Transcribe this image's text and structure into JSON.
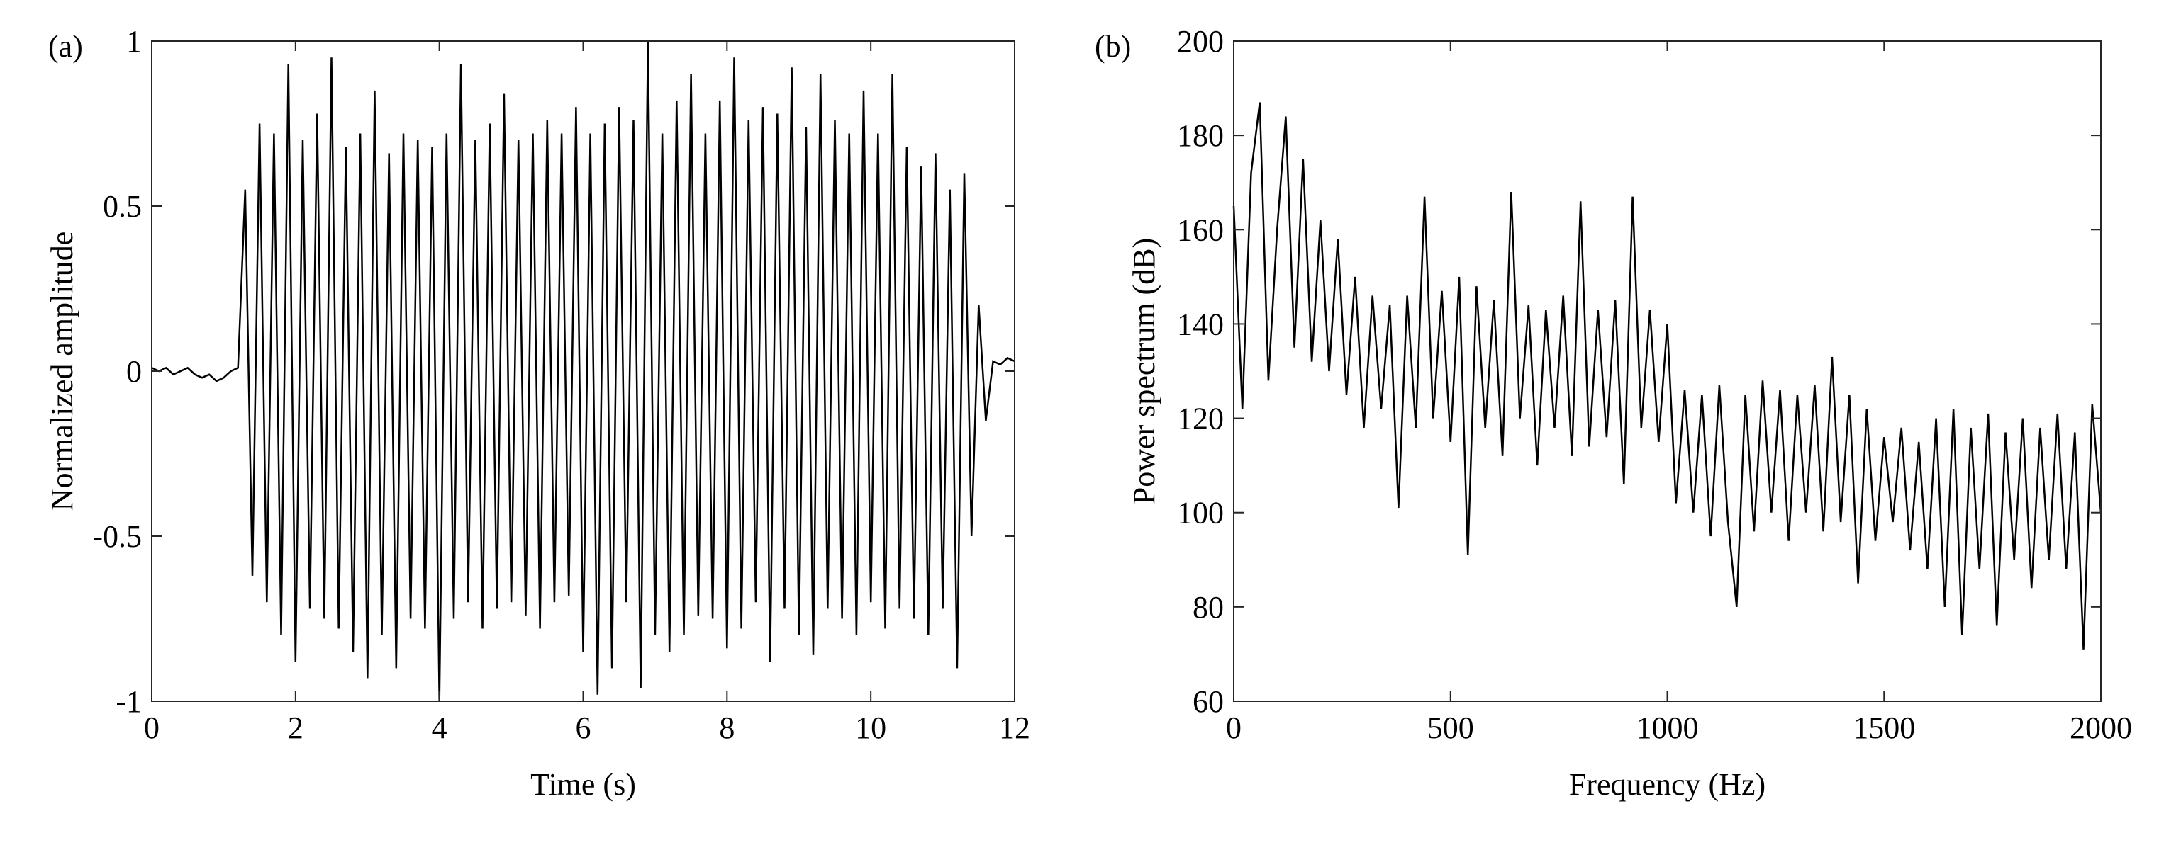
{
  "chart_data": [
    {
      "type": "line",
      "panel_label": "(a)",
      "xlabel": "Time (s)",
      "ylabel": "Normalized amplitude",
      "color": "#000000",
      "xlim": [
        0,
        12
      ],
      "xticks": [
        0,
        2,
        4,
        6,
        8,
        10,
        12
      ],
      "ylim": [
        -1,
        1
      ],
      "yticks": [
        -1,
        -0.5,
        0,
        0.5,
        1
      ],
      "x": [
        0,
        0.1,
        0.2,
        0.3,
        0.4,
        0.5,
        0.6,
        0.7,
        0.8,
        0.9,
        1,
        1.1,
        1.2,
        1.3,
        1.4,
        1.5,
        1.6,
        1.7,
        1.8,
        1.9,
        2,
        2.1,
        2.2,
        2.3,
        2.4,
        2.5,
        2.6,
        2.7,
        2.8,
        2.9,
        3,
        3.1,
        3.2,
        3.3,
        3.4,
        3.5,
        3.6,
        3.7,
        3.8,
        3.9,
        4,
        4.1,
        4.2,
        4.3,
        4.4,
        4.5,
        4.6,
        4.7,
        4.8,
        4.9,
        5,
        5.1,
        5.2,
        5.3,
        5.4,
        5.5,
        5.6,
        5.7,
        5.8,
        5.9,
        6,
        6.1,
        6.2,
        6.3,
        6.4,
        6.5,
        6.6,
        6.7,
        6.8,
        6.9,
        7,
        7.1,
        7.2,
        7.3,
        7.4,
        7.5,
        7.6,
        7.7,
        7.8,
        7.9,
        8,
        8.1,
        8.2,
        8.3,
        8.4,
        8.5,
        8.6,
        8.7,
        8.8,
        8.9,
        9,
        9.1,
        9.2,
        9.3,
        9.4,
        9.5,
        9.6,
        9.7,
        9.8,
        9.9,
        10,
        10.1,
        10.2,
        10.3,
        10.4,
        10.5,
        10.6,
        10.7,
        10.8,
        10.9,
        11,
        11.1,
        11.2,
        11.3,
        11.4,
        11.5,
        11.6,
        11.7,
        11.8,
        11.9,
        12
      ],
      "values": [
        0.01,
        0,
        0.01,
        -0.01,
        0,
        0.01,
        -0.01,
        -0.02,
        -0.01,
        -0.03,
        -0.02,
        0,
        0.01,
        0.55,
        -0.62,
        0.75,
        -0.7,
        0.72,
        -0.8,
        0.93,
        -0.88,
        0.7,
        -0.72,
        0.78,
        -0.75,
        0.95,
        -0.78,
        0.68,
        -0.85,
        0.72,
        -0.93,
        0.85,
        -0.8,
        0.66,
        -0.9,
        0.72,
        -0.75,
        0.7,
        -0.78,
        0.68,
        -1,
        0.72,
        -0.75,
        0.93,
        -0.7,
        0.7,
        -0.78,
        0.75,
        -0.72,
        0.84,
        -0.7,
        0.7,
        -0.74,
        0.72,
        -0.78,
        0.76,
        -0.7,
        0.72,
        -0.68,
        0.8,
        -0.85,
        0.72,
        -0.98,
        0.75,
        -0.9,
        0.8,
        -0.7,
        0.76,
        -0.96,
        1,
        -0.8,
        0.72,
        -0.85,
        0.82,
        -0.8,
        0.9,
        -0.74,
        0.72,
        -0.75,
        0.82,
        -0.84,
        0.95,
        -0.78,
        0.76,
        -0.7,
        0.8,
        -0.88,
        0.78,
        -0.72,
        0.92,
        -0.8,
        0.74,
        -0.86,
        0.9,
        -0.72,
        0.76,
        -0.75,
        0.72,
        -0.8,
        0.85,
        -0.7,
        0.72,
        -0.78,
        0.9,
        -0.72,
        0.68,
        -0.75,
        0.62,
        -0.8,
        0.66,
        -0.72,
        0.55,
        -0.9,
        0.6,
        -0.5,
        0.2,
        -0.15,
        0.03,
        0.02,
        0.04,
        0.03
      ]
    },
    {
      "type": "line",
      "panel_label": "(b)",
      "xlabel": "Frequency (Hz)",
      "ylabel": "Power spectrum (dB)",
      "color": "#000000",
      "xlim": [
        0,
        2000
      ],
      "xticks": [
        0,
        500,
        1000,
        1500,
        2000
      ],
      "ylim": [
        60,
        200
      ],
      "yticks": [
        60,
        80,
        100,
        120,
        140,
        160,
        180,
        200
      ],
      "x": [
        0,
        20,
        40,
        60,
        80,
        100,
        120,
        140,
        160,
        180,
        200,
        220,
        240,
        260,
        280,
        300,
        320,
        340,
        360,
        380,
        400,
        420,
        440,
        460,
        480,
        500,
        520,
        540,
        560,
        580,
        600,
        620,
        640,
        660,
        680,
        700,
        720,
        740,
        760,
        780,
        800,
        820,
        840,
        860,
        880,
        900,
        920,
        940,
        960,
        980,
        1000,
        1020,
        1040,
        1060,
        1080,
        1100,
        1120,
        1140,
        1160,
        1180,
        1200,
        1220,
        1240,
        1260,
        1280,
        1300,
        1320,
        1340,
        1360,
        1380,
        1400,
        1420,
        1440,
        1460,
        1480,
        1500,
        1520,
        1540,
        1560,
        1580,
        1600,
        1620,
        1640,
        1660,
        1680,
        1700,
        1720,
        1740,
        1760,
        1780,
        1800,
        1820,
        1840,
        1860,
        1880,
        1900,
        1920,
        1940,
        1960,
        1980,
        2000
      ],
      "values": [
        165,
        122,
        172,
        187,
        128,
        160,
        184,
        135,
        175,
        132,
        162,
        130,
        158,
        125,
        150,
        118,
        146,
        122,
        144,
        101,
        146,
        118,
        167,
        120,
        147,
        115,
        150,
        91,
        148,
        118,
        145,
        112,
        168,
        120,
        144,
        110,
        143,
        118,
        146,
        112,
        166,
        114,
        143,
        116,
        145,
        106,
        167,
        118,
        143,
        115,
        140,
        102,
        126,
        100,
        125,
        95,
        127,
        98,
        80,
        125,
        96,
        128,
        100,
        126,
        94,
        125,
        100,
        127,
        96,
        133,
        98,
        125,
        85,
        122,
        94,
        116,
        98,
        118,
        92,
        115,
        88,
        120,
        80,
        122,
        74,
        118,
        88,
        121,
        76,
        117,
        90,
        120,
        84,
        118,
        90,
        121,
        88,
        117,
        71,
        123,
        100
      ]
    }
  ]
}
